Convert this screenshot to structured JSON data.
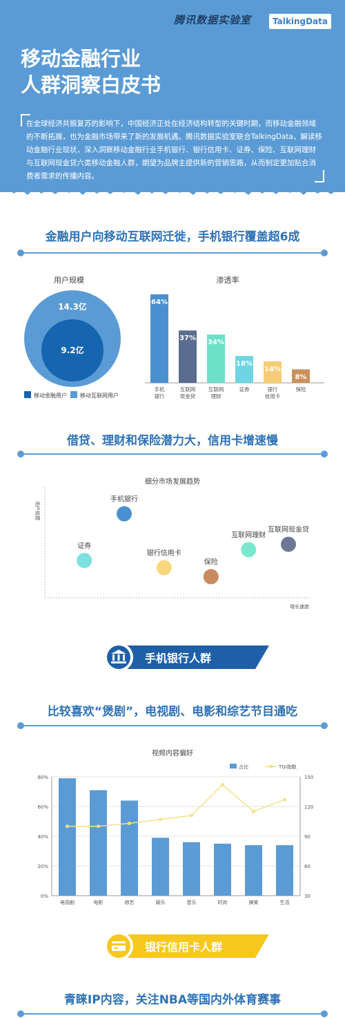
{
  "header": {
    "brand_cn": "腾讯数据实验室",
    "brand_en": "TalkingData",
    "title_line1": "移动金融行业",
    "title_line2": "人群洞察白皮书",
    "description": "在全球经济共振复苏的影响下，中国经济正处在经济结构转型的关键时期，而移动金融领域的不断拓展，也为金融市场带来了新的发展机遇。腾讯数据实验室联合TalkingData，解读移动金融行业现状，深入洞察移动金融行业手机银行、银行信用卡、证券、保险、互联网理财与互联网现金贷六类移动金融人群，期望为品牌主提供新的营销思路，从而制定更加贴合消费者需求的传播内容。"
  },
  "sections": {
    "s1_title": "金融用户向移动互联网迁徙，手机银行覆盖超6成",
    "s2_title": "借贷、理财和保险潜力大，信用卡增速慢",
    "s3_title": "比较喜欢“煲剧”，电视剧、电影和综艺节目通吃",
    "s4_title": "青睐IP内容，关注NBA等国内外体育赛事",
    "banner1": "手机银行人群",
    "banner2": "银行信用卡人群"
  },
  "colors": {
    "blue": "#5b9bd5",
    "dark_blue": "#1f5fa8",
    "title_blue": "#2e72b6",
    "yellow": "#f6c81e"
  },
  "chart_data": [
    {
      "type": "pie",
      "title": "用户规模",
      "slices": [
        {
          "label": "9.2亿",
          "value": 9.2,
          "legend": "移动金融用户",
          "color": "#1565b0"
        },
        {
          "label": "14.3亿",
          "value": 14.3,
          "legend": "移动互联网用户",
          "color": "#5b9bd5"
        }
      ]
    },
    {
      "type": "bar",
      "title": "渗透率",
      "categories": [
        "手机\n银行",
        "互联网\n现金贷",
        "互联网\n理财",
        "证券",
        "银行\n信用卡",
        "保险"
      ],
      "values": [
        64,
        37,
        34,
        18,
        14,
        8
      ],
      "labels": [
        "64%",
        "37%",
        "34%",
        "18%",
        "14%",
        "8%"
      ],
      "colors": [
        "#4a90d0",
        "#5a6c8f",
        "#6de0c8",
        "#6fd5e4",
        "#f5cd75",
        "#c9905a"
      ]
    },
    {
      "type": "scatter",
      "title": "细分市场发展趋势",
      "ylabel": "用户规模",
      "xlabel": "增长速度",
      "points": [
        {
          "name": "手机银行",
          "x": 25,
          "y": 82,
          "color": "#4a90d0"
        },
        {
          "name": "证券",
          "x": 8,
          "y": 30,
          "color": "#7fe0e0"
        },
        {
          "name": "银行信用卡",
          "x": 42,
          "y": 22,
          "color": "#f9d77e"
        },
        {
          "name": "保险",
          "x": 62,
          "y": 12,
          "color": "#c88b5d"
        },
        {
          "name": "互联网理财",
          "x": 78,
          "y": 42,
          "color": "#7ae8cf"
        },
        {
          "name": "互联网现金贷",
          "x": 95,
          "y": 48,
          "color": "#6c7894"
        }
      ]
    },
    {
      "type": "bar",
      "title": "视频内容偏好",
      "categories": [
        "电视剧",
        "电影",
        "综艺",
        "娱乐",
        "音乐",
        "时尚",
        "搞笑",
        "生活"
      ],
      "series": [
        {
          "name": "占比",
          "values": [
            79,
            71,
            64,
            39,
            36,
            35,
            34,
            34
          ],
          "color": "#5b9bd5"
        },
        {
          "name": "TGI指数",
          "values": [
            100,
            100,
            103,
            107,
            111,
            142,
            115,
            127
          ],
          "color": "#f5e08a"
        }
      ],
      "y_ticks": [
        "0%",
        "20%",
        "40%",
        "60%",
        "80%"
      ],
      "ylim": [
        0,
        80
      ],
      "y2_ticks": [
        "30",
        "60",
        "90",
        "120",
        "150"
      ],
      "y2lim": [
        30,
        150
      ]
    }
  ]
}
